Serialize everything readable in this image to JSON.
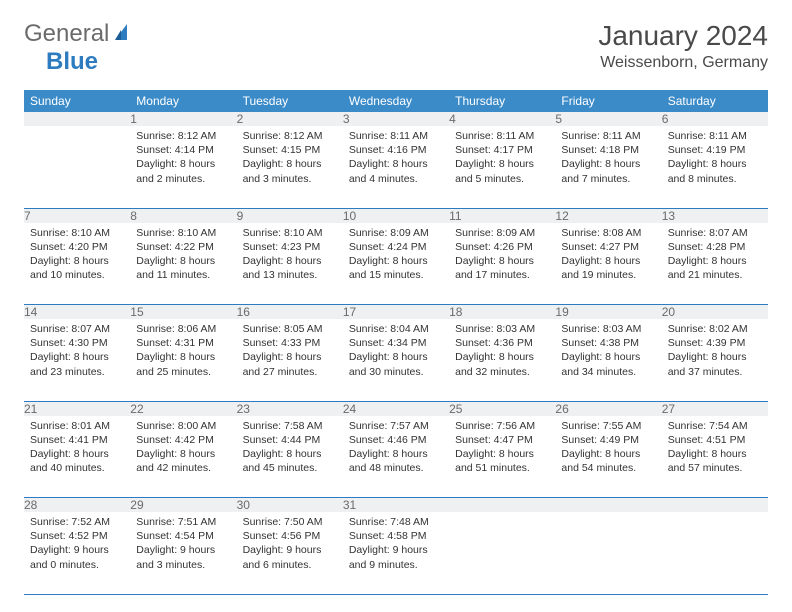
{
  "brand": {
    "part1": "General",
    "part2": "Blue"
  },
  "title": "January 2024",
  "location": "Weissenborn, Germany",
  "colors": {
    "header_bg": "#3b8bc9",
    "header_text": "#ffffff",
    "daynum_bg": "#eef0f2",
    "daynum_text": "#6b6b6b",
    "row_border": "#2e7cc0",
    "body_text": "#333333",
    "logo_gray": "#6b6b6b",
    "logo_blue": "#2e7cc0"
  },
  "day_headers": [
    "Sunday",
    "Monday",
    "Tuesday",
    "Wednesday",
    "Thursday",
    "Friday",
    "Saturday"
  ],
  "weeks": [
    [
      null,
      {
        "n": "1",
        "sr": "8:12 AM",
        "ss": "4:14 PM",
        "dl": "8 hours and 2 minutes."
      },
      {
        "n": "2",
        "sr": "8:12 AM",
        "ss": "4:15 PM",
        "dl": "8 hours and 3 minutes."
      },
      {
        "n": "3",
        "sr": "8:11 AM",
        "ss": "4:16 PM",
        "dl": "8 hours and 4 minutes."
      },
      {
        "n": "4",
        "sr": "8:11 AM",
        "ss": "4:17 PM",
        "dl": "8 hours and 5 minutes."
      },
      {
        "n": "5",
        "sr": "8:11 AM",
        "ss": "4:18 PM",
        "dl": "8 hours and 7 minutes."
      },
      {
        "n": "6",
        "sr": "8:11 AM",
        "ss": "4:19 PM",
        "dl": "8 hours and 8 minutes."
      }
    ],
    [
      {
        "n": "7",
        "sr": "8:10 AM",
        "ss": "4:20 PM",
        "dl": "8 hours and 10 minutes."
      },
      {
        "n": "8",
        "sr": "8:10 AM",
        "ss": "4:22 PM",
        "dl": "8 hours and 11 minutes."
      },
      {
        "n": "9",
        "sr": "8:10 AM",
        "ss": "4:23 PM",
        "dl": "8 hours and 13 minutes."
      },
      {
        "n": "10",
        "sr": "8:09 AM",
        "ss": "4:24 PM",
        "dl": "8 hours and 15 minutes."
      },
      {
        "n": "11",
        "sr": "8:09 AM",
        "ss": "4:26 PM",
        "dl": "8 hours and 17 minutes."
      },
      {
        "n": "12",
        "sr": "8:08 AM",
        "ss": "4:27 PM",
        "dl": "8 hours and 19 minutes."
      },
      {
        "n": "13",
        "sr": "8:07 AM",
        "ss": "4:28 PM",
        "dl": "8 hours and 21 minutes."
      }
    ],
    [
      {
        "n": "14",
        "sr": "8:07 AM",
        "ss": "4:30 PM",
        "dl": "8 hours and 23 minutes."
      },
      {
        "n": "15",
        "sr": "8:06 AM",
        "ss": "4:31 PM",
        "dl": "8 hours and 25 minutes."
      },
      {
        "n": "16",
        "sr": "8:05 AM",
        "ss": "4:33 PM",
        "dl": "8 hours and 27 minutes."
      },
      {
        "n": "17",
        "sr": "8:04 AM",
        "ss": "4:34 PM",
        "dl": "8 hours and 30 minutes."
      },
      {
        "n": "18",
        "sr": "8:03 AM",
        "ss": "4:36 PM",
        "dl": "8 hours and 32 minutes."
      },
      {
        "n": "19",
        "sr": "8:03 AM",
        "ss": "4:38 PM",
        "dl": "8 hours and 34 minutes."
      },
      {
        "n": "20",
        "sr": "8:02 AM",
        "ss": "4:39 PM",
        "dl": "8 hours and 37 minutes."
      }
    ],
    [
      {
        "n": "21",
        "sr": "8:01 AM",
        "ss": "4:41 PM",
        "dl": "8 hours and 40 minutes."
      },
      {
        "n": "22",
        "sr": "8:00 AM",
        "ss": "4:42 PM",
        "dl": "8 hours and 42 minutes."
      },
      {
        "n": "23",
        "sr": "7:58 AM",
        "ss": "4:44 PM",
        "dl": "8 hours and 45 minutes."
      },
      {
        "n": "24",
        "sr": "7:57 AM",
        "ss": "4:46 PM",
        "dl": "8 hours and 48 minutes."
      },
      {
        "n": "25",
        "sr": "7:56 AM",
        "ss": "4:47 PM",
        "dl": "8 hours and 51 minutes."
      },
      {
        "n": "26",
        "sr": "7:55 AM",
        "ss": "4:49 PM",
        "dl": "8 hours and 54 minutes."
      },
      {
        "n": "27",
        "sr": "7:54 AM",
        "ss": "4:51 PM",
        "dl": "8 hours and 57 minutes."
      }
    ],
    [
      {
        "n": "28",
        "sr": "7:52 AM",
        "ss": "4:52 PM",
        "dl": "9 hours and 0 minutes."
      },
      {
        "n": "29",
        "sr": "7:51 AM",
        "ss": "4:54 PM",
        "dl": "9 hours and 3 minutes."
      },
      {
        "n": "30",
        "sr": "7:50 AM",
        "ss": "4:56 PM",
        "dl": "9 hours and 6 minutes."
      },
      {
        "n": "31",
        "sr": "7:48 AM",
        "ss": "4:58 PM",
        "dl": "9 hours and 9 minutes."
      },
      null,
      null,
      null
    ]
  ],
  "labels": {
    "sunrise": "Sunrise:",
    "sunset": "Sunset:",
    "daylight": "Daylight:"
  }
}
